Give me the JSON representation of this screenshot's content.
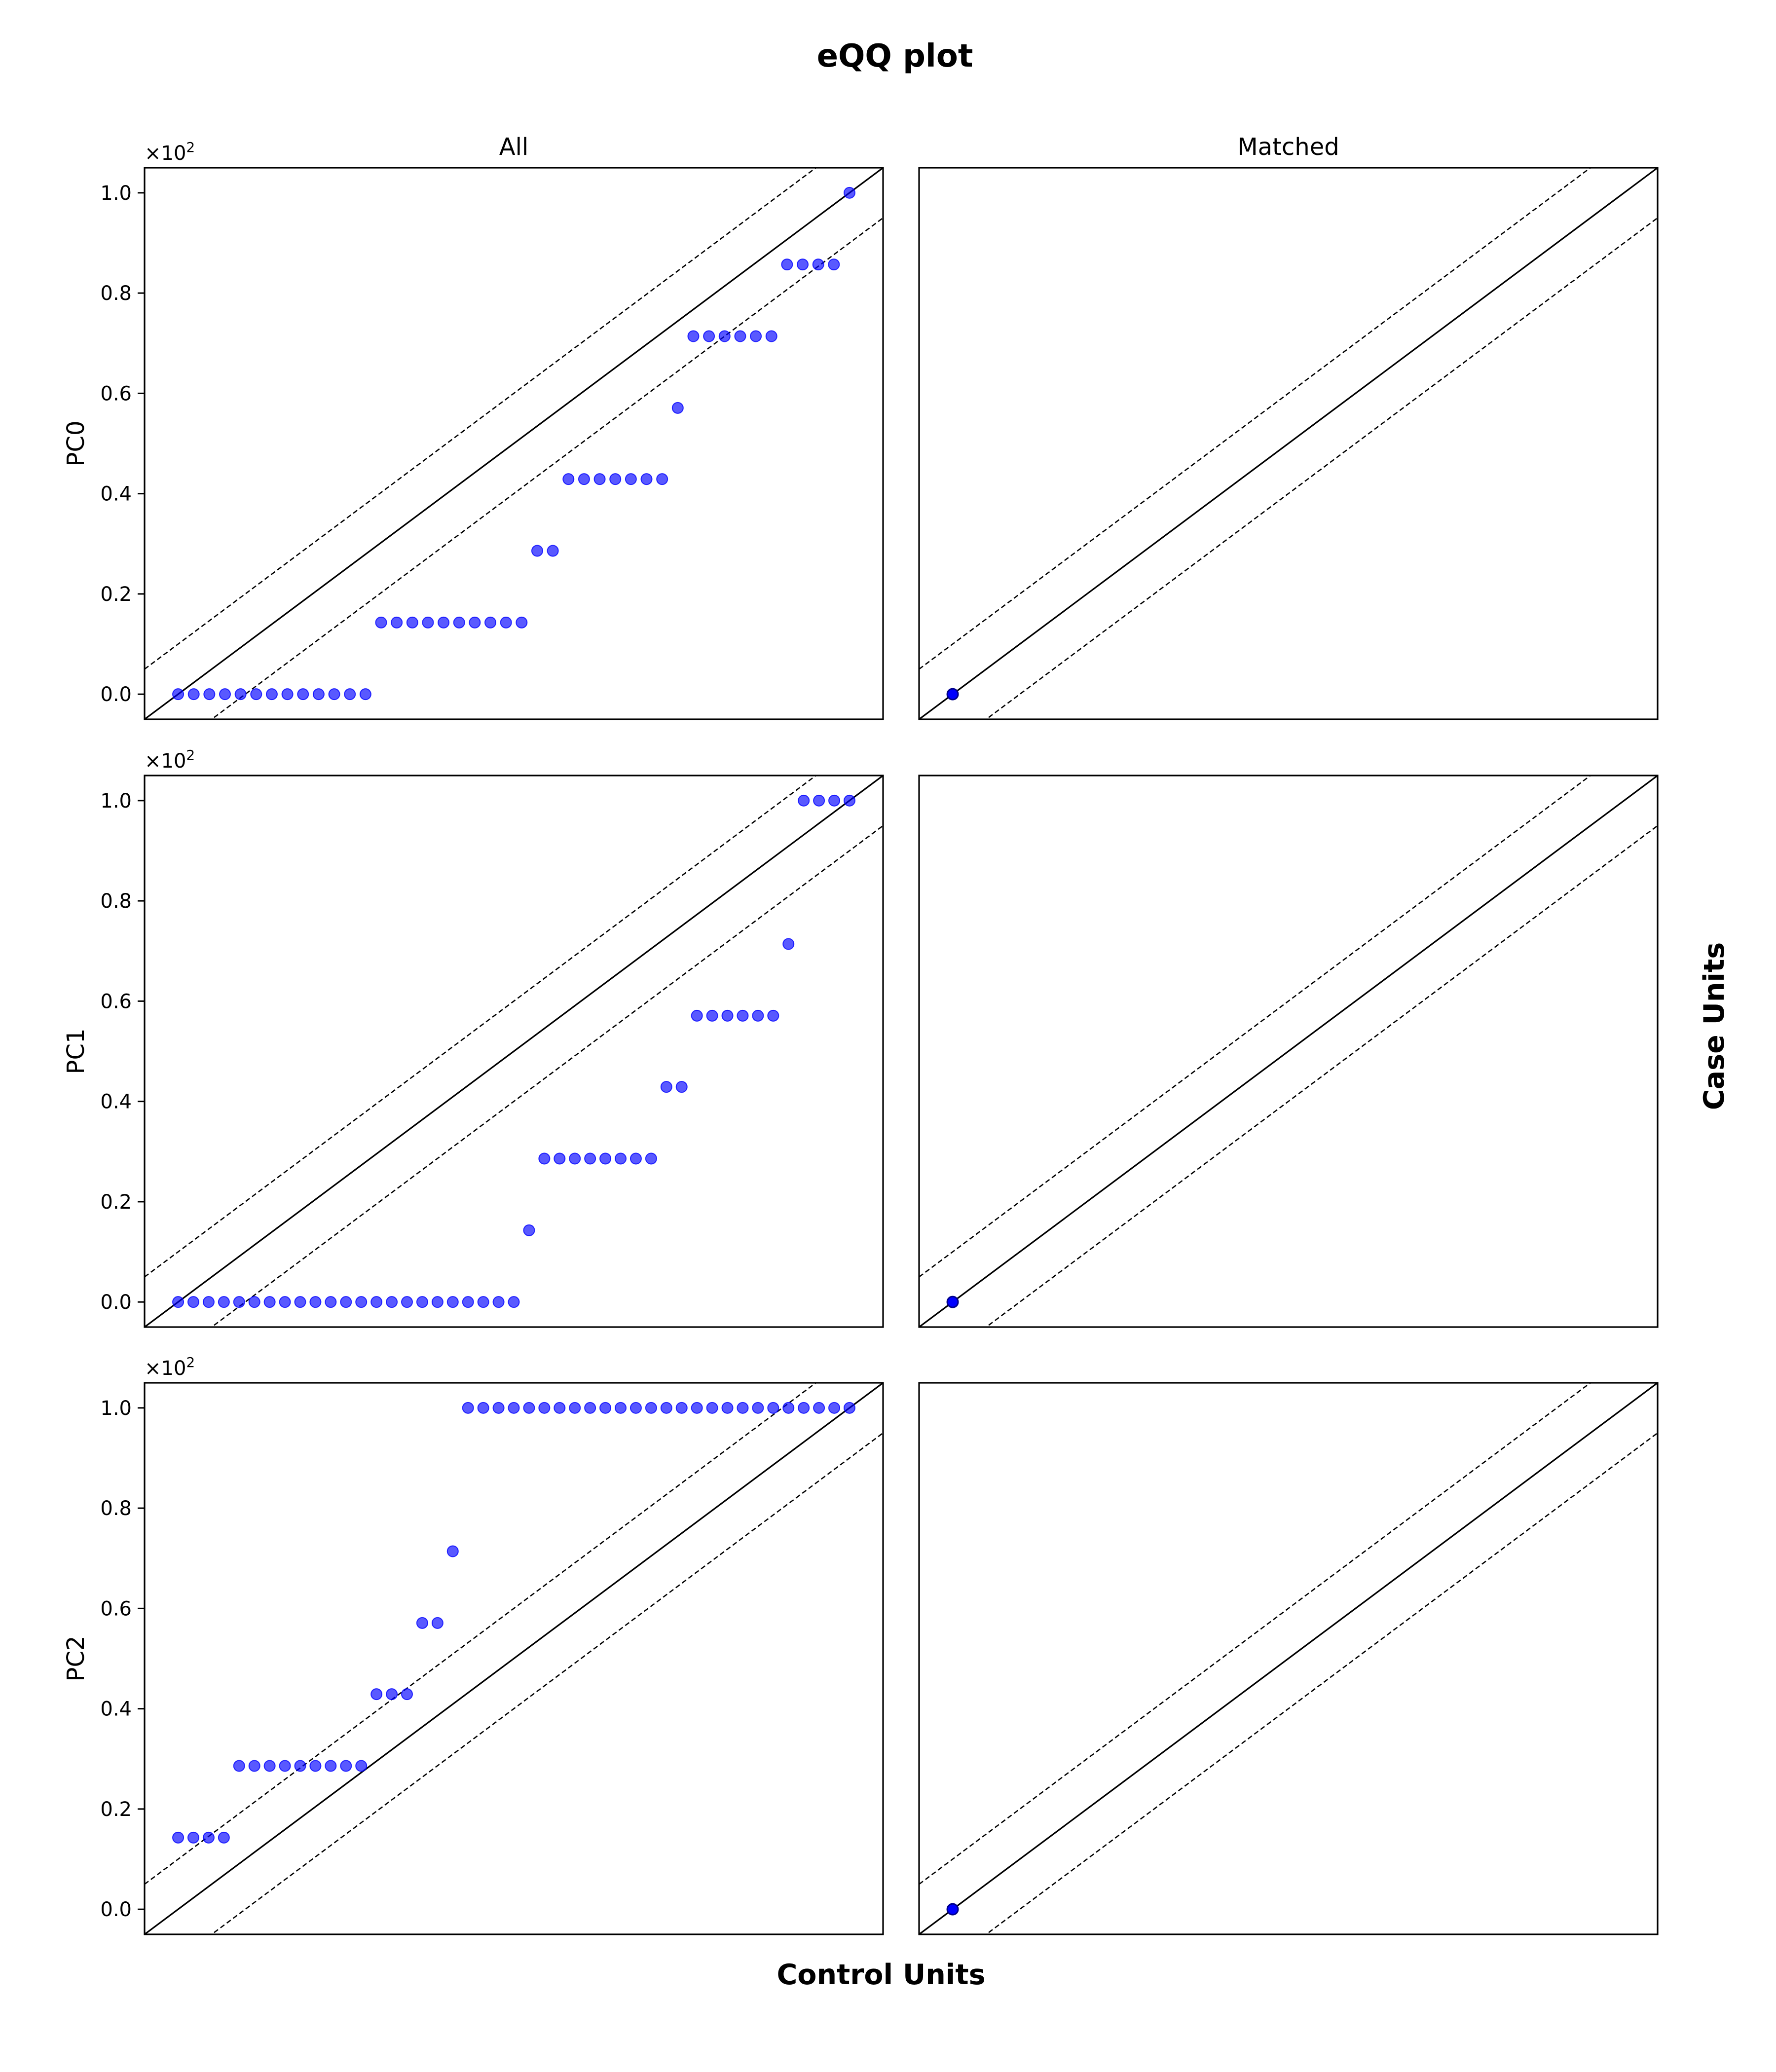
{
  "title": "eQQ plot",
  "xlabel": "Control Units",
  "ylabel": "Case Units",
  "columns": [
    "All",
    "Matched"
  ],
  "rows": [
    "PC0",
    "PC1",
    "PC2"
  ],
  "y_offset_label": "×10",
  "y_offset_exponent": "2",
  "colors": {
    "points": "#0000ff",
    "lines": "#000000",
    "background": "#ffffff"
  },
  "chart_data": {
    "type": "scatter",
    "layout": "3x2 grid of eQQ panels (rows: PC0, PC1, PC2; columns: All, Matched)",
    "ylim": [
      -0.05,
      1.05
    ],
    "xlim": [
      -0.05,
      1.05
    ],
    "yticks": [
      "0.0",
      "0.2",
      "0.4",
      "0.6",
      "0.8",
      "1.0"
    ],
    "ytick_values": [
      0,
      0.2,
      0.4,
      0.6,
      0.8,
      1.0
    ],
    "x_ticks_shown": false,
    "reference_lines": {
      "identity": "y = x (solid)",
      "bands": "y = x ± 0.1 (dashed)"
    },
    "panels": [
      {
        "row": "PC0",
        "column": "All",
        "series": [
          {
            "values_case": [
              0,
              0,
              0,
              0,
              0,
              0,
              0,
              0,
              0,
              0,
              0,
              0,
              0,
              0.143,
              0.143,
              0.143,
              0.143,
              0.143,
              0.143,
              0.143,
              0.143,
              0.143,
              0.143,
              0.286,
              0.286,
              0.429,
              0.429,
              0.429,
              0.429,
              0.429,
              0.429,
              0.429,
              0.571,
              0.714,
              0.714,
              0.714,
              0.714,
              0.714,
              0.714,
              0.857,
              0.857,
              0.857,
              0.857,
              1.0
            ]
          }
        ]
      },
      {
        "row": "PC0",
        "column": "Matched",
        "series": [
          {
            "points": [
              [
                0,
                0
              ]
            ]
          }
        ]
      },
      {
        "row": "PC1",
        "column": "All",
        "series": [
          {
            "values_case": [
              0,
              0,
              0,
              0,
              0,
              0,
              0,
              0,
              0,
              0,
              0,
              0,
              0,
              0,
              0,
              0,
              0,
              0,
              0,
              0,
              0,
              0,
              0,
              0.143,
              0.286,
              0.286,
              0.286,
              0.286,
              0.286,
              0.286,
              0.286,
              0.286,
              0.429,
              0.429,
              0.571,
              0.571,
              0.571,
              0.571,
              0.571,
              0.571,
              0.714,
              1.0,
              1.0,
              1.0,
              1.0
            ]
          }
        ]
      },
      {
        "row": "PC1",
        "column": "Matched",
        "series": [
          {
            "points": [
              [
                0,
                0
              ]
            ]
          }
        ]
      },
      {
        "row": "PC2",
        "column": "All",
        "series": [
          {
            "values_case": [
              0.143,
              0.143,
              0.143,
              0.143,
              0.286,
              0.286,
              0.286,
              0.286,
              0.286,
              0.286,
              0.286,
              0.286,
              0.286,
              0.429,
              0.429,
              0.429,
              0.571,
              0.571,
              0.714,
              1.0,
              1.0,
              1.0,
              1.0,
              1.0,
              1.0,
              1.0,
              1.0,
              1.0,
              1.0,
              1.0,
              1.0,
              1.0,
              1.0,
              1.0,
              1.0,
              1.0,
              1.0,
              1.0,
              1.0,
              1.0,
              1.0,
              1.0,
              1.0,
              1.0,
              1.0
            ]
          }
        ]
      },
      {
        "row": "PC2",
        "column": "Matched",
        "series": [
          {
            "points": [
              [
                0,
                0
              ]
            ]
          }
        ]
      }
    ]
  }
}
